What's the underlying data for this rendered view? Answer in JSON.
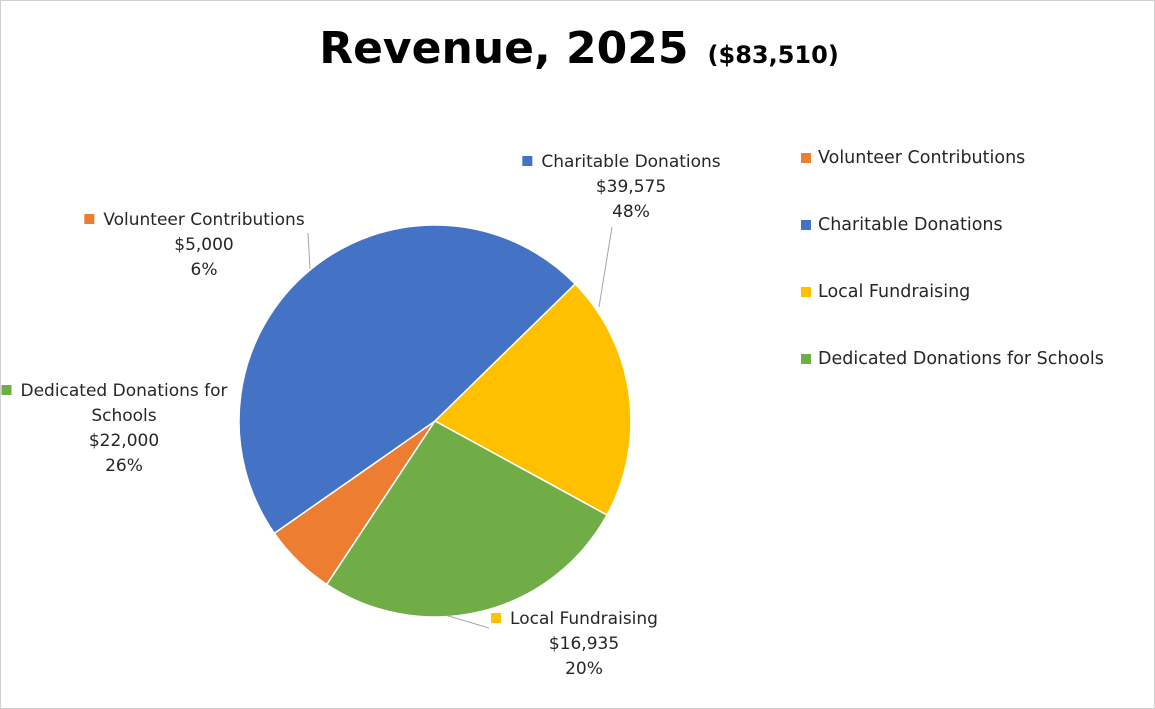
{
  "chart_data": {
    "type": "pie",
    "title": "Revenue, 2025",
    "subtitle": "($83,510)",
    "slices": [
      {
        "name": "Volunteer Contributions",
        "value": 5000,
        "value_label": "$5,000",
        "percent_label": "6%",
        "color": "#ED7D31"
      },
      {
        "name": "Charitable Donations",
        "value": 39575,
        "value_label": "$39,575",
        "percent_label": "48%",
        "color": "#4472C4"
      },
      {
        "name": "Local Fundraising",
        "value": 16935,
        "value_label": "$16,935",
        "percent_label": "20%",
        "color": "#FFC000"
      },
      {
        "name": "Dedicated Donations for Schools",
        "value": 22000,
        "value_label": "$22,000",
        "percent_label": "26%",
        "color": "#70AD47"
      }
    ],
    "legend_position": "right",
    "data_labels": "outside-with-leader-lines"
  }
}
